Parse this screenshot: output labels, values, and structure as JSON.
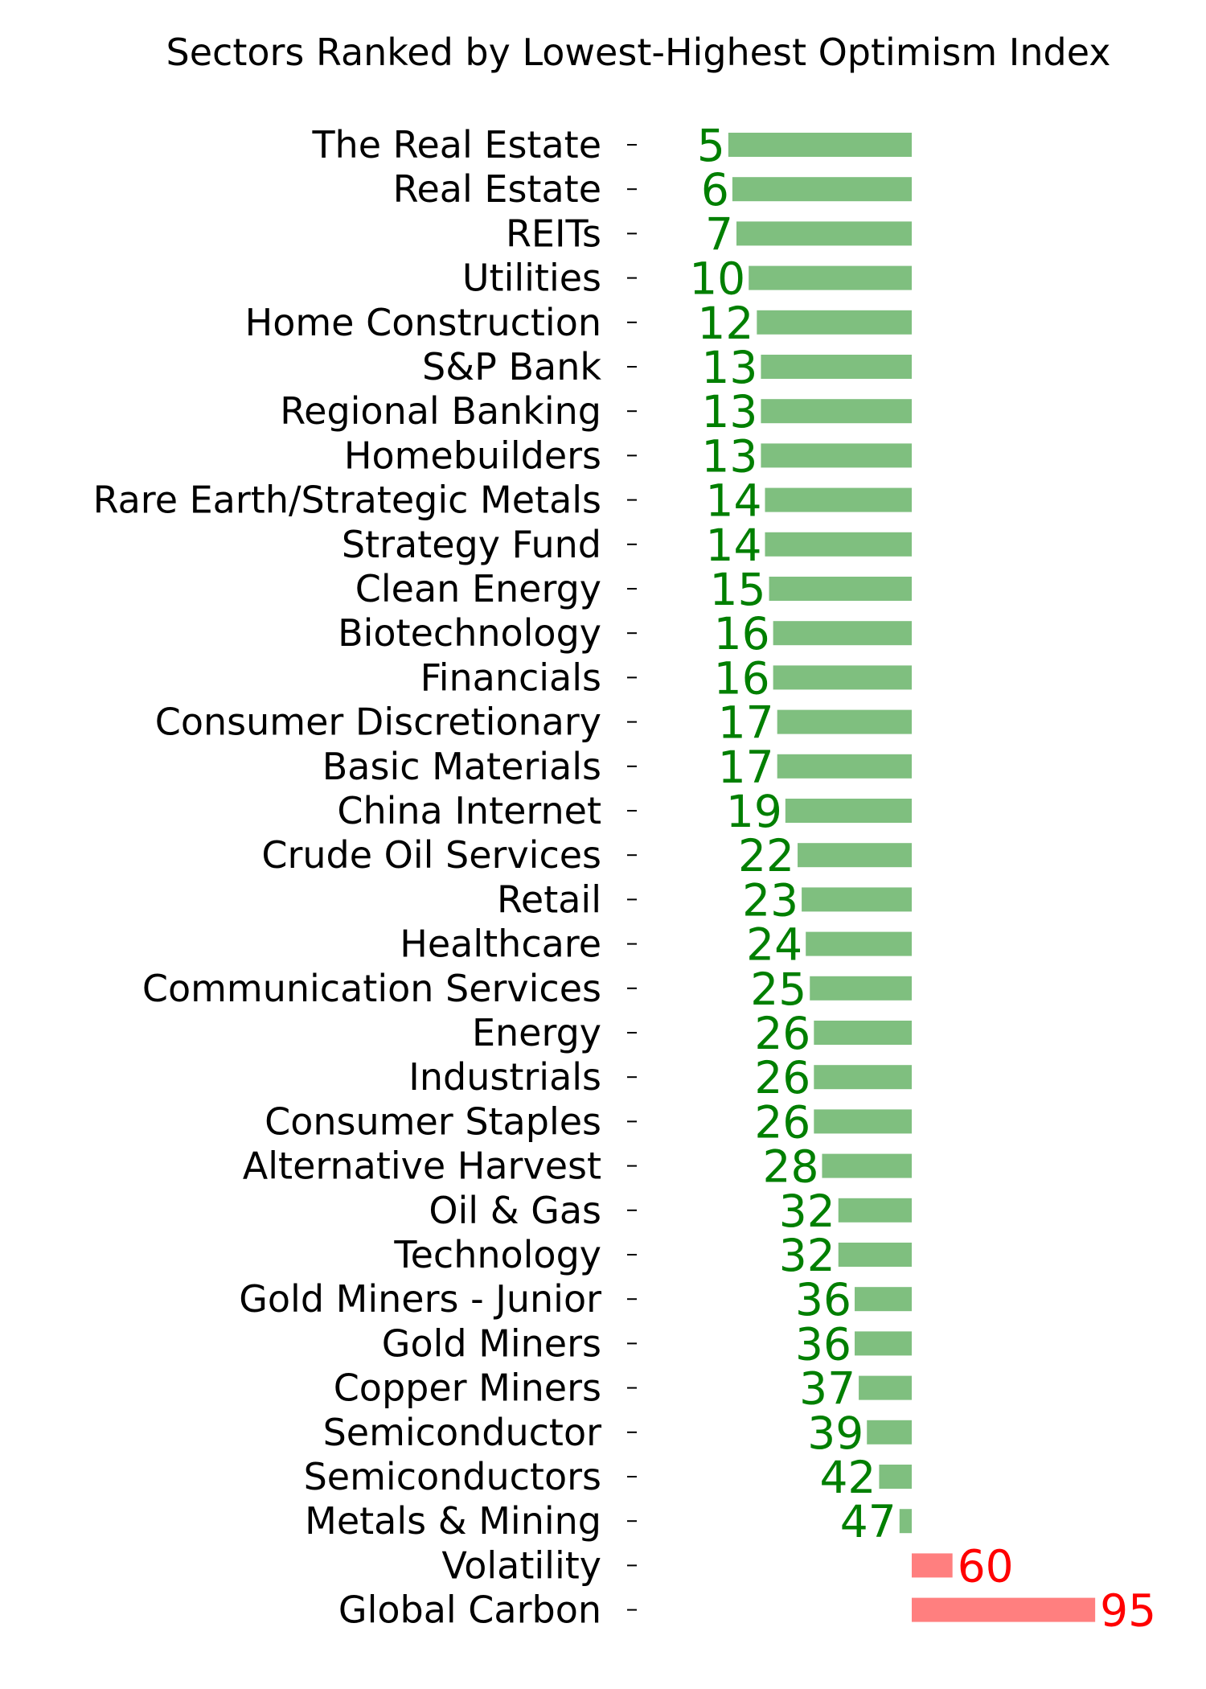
{
  "chart_data": {
    "type": "bar",
    "orientation": "horizontal",
    "title": "Sectors Ranked by Lowest-Highest Optimism Index",
    "xlabel": "",
    "ylabel": "",
    "reference_value": 50,
    "grid": false,
    "colors": {
      "below_reference": "#7fbf7f",
      "below_reference_label": "#007f00",
      "above_reference": "#ff7f7f",
      "above_reference_label": "#ff0000"
    },
    "categories": [
      "The Real Estate",
      "Real Estate",
      "REITs",
      "Utilities",
      "Home Construction",
      "S&P Bank",
      "Regional Banking",
      "Homebuilders",
      "Rare Earth/Strategic Metals",
      "Strategy Fund",
      "Clean Energy",
      "Biotechnology",
      "Financials",
      "Consumer Discretionary",
      "Basic Materials",
      "China Internet",
      "Crude Oil Services",
      "Retail",
      "Healthcare",
      "Communication Services",
      "Energy",
      "Industrials",
      "Consumer Staples",
      "Alternative Harvest",
      "Oil & Gas",
      "Technology",
      "Gold Miners - Junior",
      "Gold Miners",
      "Copper Miners",
      "Semiconductor",
      "Semiconductors",
      "Metals & Mining",
      "Volatility",
      "Global Carbon"
    ],
    "values": [
      5,
      6,
      7,
      10,
      12,
      13,
      13,
      13,
      14,
      14,
      15,
      16,
      16,
      17,
      17,
      19,
      22,
      23,
      24,
      25,
      26,
      26,
      26,
      28,
      32,
      32,
      36,
      36,
      37,
      39,
      42,
      47,
      60,
      95
    ]
  }
}
